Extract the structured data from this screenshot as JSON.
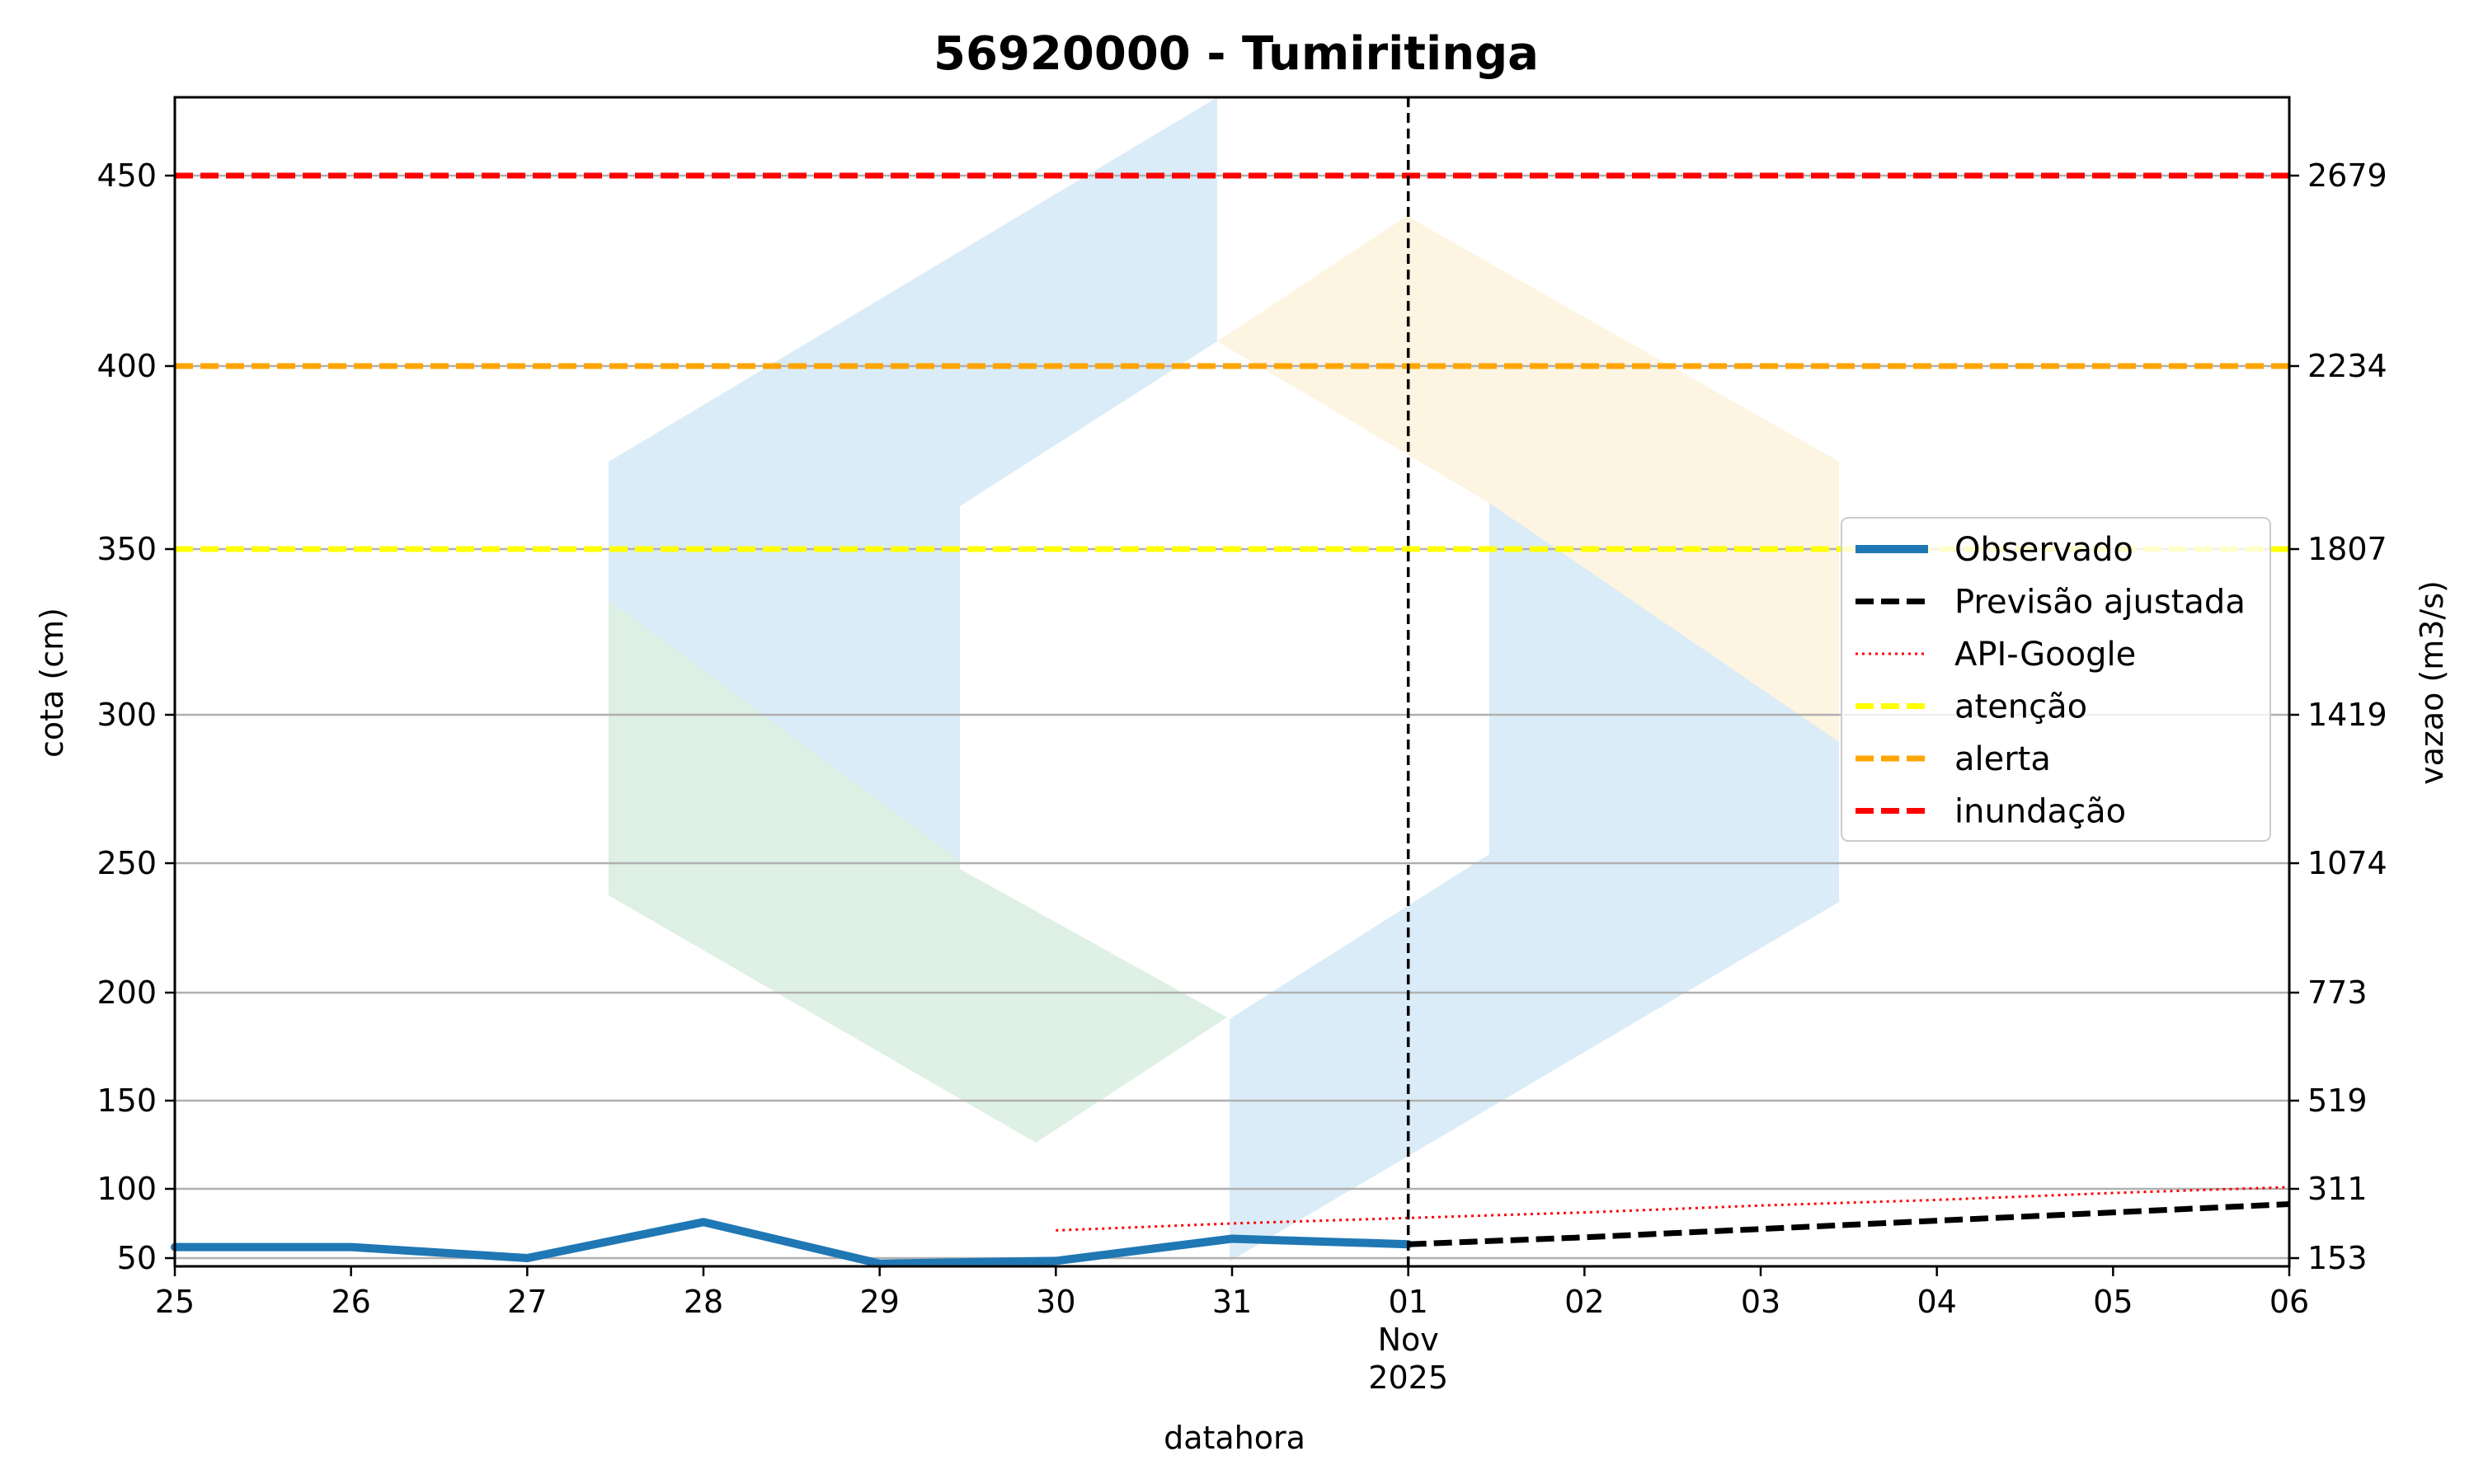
{
  "chart_data": {
    "type": "line",
    "title": "56920000 - Tumiritinga",
    "xlabel": "datahora",
    "ylabel": "cota (cm)",
    "y2label": "vazao (m3/s)",
    "x_range": [
      "2025-10-25",
      "2025-11-06"
    ],
    "x_ticks": [
      "25",
      "26",
      "27",
      "28",
      "29",
      "30",
      "31",
      "01",
      "02",
      "03",
      "04",
      "05",
      "06"
    ],
    "x_tick_sublabel": [
      "Nov",
      "2025"
    ],
    "ylim": [
      41,
      472
    ],
    "y_ticks": [
      50,
      100,
      150,
      200,
      250,
      300,
      350,
      400,
      450
    ],
    "y2_ticks": [
      "153",
      "311",
      "519",
      "773",
      "1074",
      "1419",
      "1807",
      "2234",
      "2679"
    ],
    "y_scale": "nonlinear (rating curve)",
    "grid": "horizontal",
    "legend_position": "center-right",
    "forecast_start": "2025-11-01",
    "series": [
      {
        "name": "Observado",
        "style": "solid",
        "color": "#1f77b4",
        "x": [
          "2025-10-25",
          "2025-10-26",
          "2025-10-27",
          "2025-10-28",
          "2025-10-29",
          "2025-10-30",
          "2025-10-31",
          "2025-11-01"
        ],
        "y": [
          58,
          58,
          50,
          76,
          46,
          48,
          64,
          60
        ]
      },
      {
        "name": "Previsão ajustada",
        "style": "dashed",
        "color": "#000000",
        "x": [
          "2025-11-01",
          "2025-11-02",
          "2025-11-03",
          "2025-11-04",
          "2025-11-05",
          "2025-11-06"
        ],
        "y": [
          60,
          65,
          71,
          77,
          83,
          89
        ]
      },
      {
        "name": "API-Google",
        "style": "dotted",
        "color": "#ff0000",
        "x": [
          "2025-10-30",
          "2025-10-31",
          "2025-11-01",
          "2025-11-02",
          "2025-11-03",
          "2025-11-04",
          "2025-11-05",
          "2025-11-06"
        ],
        "y": [
          70,
          75,
          79,
          83,
          88,
          92,
          97,
          101
        ]
      }
    ],
    "thresholds": [
      {
        "name": "atenção",
        "value": 350,
        "color": "#ffff00"
      },
      {
        "name": "alerta",
        "value": 400,
        "color": "#ffa500"
      },
      {
        "name": "inundação",
        "value": 450,
        "color": "#ff0000"
      }
    ]
  }
}
